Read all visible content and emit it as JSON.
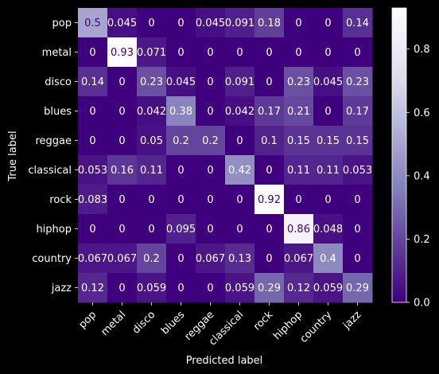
{
  "chart_data": {
    "type": "heatmap",
    "title": "",
    "xlabel": "Predicted label",
    "ylabel": "True label",
    "x_categories": [
      "pop",
      "metal",
      "disco",
      "blues",
      "reggae",
      "classical",
      "rock",
      "hiphop",
      "country",
      "jazz"
    ],
    "y_categories": [
      "pop",
      "metal",
      "disco",
      "blues",
      "reggae",
      "classical",
      "rock",
      "hiphop",
      "country",
      "jazz"
    ],
    "values": [
      [
        "0.5",
        "0.045",
        "0",
        "0",
        "0.045",
        "0.091",
        "0.18",
        "0",
        "0",
        "0.14"
      ],
      [
        "0",
        "0.93",
        "0.071",
        "0",
        "0",
        "0",
        "0",
        "0",
        "0",
        "0"
      ],
      [
        "0.14",
        "0",
        "0.23",
        "0.045",
        "0",
        "0.091",
        "0",
        "0.23",
        "0.045",
        "0.23"
      ],
      [
        "0",
        "0",
        "0.042",
        "0.38",
        "0",
        "0.042",
        "0.17",
        "0.21",
        "0",
        "0.17"
      ],
      [
        "0",
        "0",
        "0.05",
        "0.2",
        "0.2",
        "0",
        "0.1",
        "0.15",
        "0.15",
        "0.15"
      ],
      [
        "0.053",
        "0.16",
        "0.11",
        "0",
        "0",
        "0.42",
        "0",
        "0.11",
        "0.11",
        "0.053"
      ],
      [
        "0.083",
        "0",
        "0",
        "0",
        "0",
        "0",
        "0.92",
        "0",
        "0",
        "0"
      ],
      [
        "0",
        "0",
        "0",
        "0.095",
        "0",
        "0",
        "0",
        "0.86",
        "0.048",
        "0"
      ],
      [
        "0.067",
        "0.067",
        "0.2",
        "0",
        "0.067",
        "0.13",
        "0",
        "0.067",
        "0.4",
        "0"
      ],
      [
        "0.12",
        "0",
        "0.059",
        "0",
        "0",
        "0.059",
        "0.29",
        "0.12",
        "0.059",
        "0.29"
      ]
    ],
    "colorbar": {
      "range": [
        0.0,
        0.93
      ],
      "ticks": [
        "0.0",
        "0.2",
        "0.4",
        "0.6",
        "0.8"
      ],
      "colormap": "Purples_r",
      "low_color": "#3f007d",
      "high_color": "#fcfbfd"
    },
    "background": "#000000",
    "foreground": "#ffffff"
  }
}
